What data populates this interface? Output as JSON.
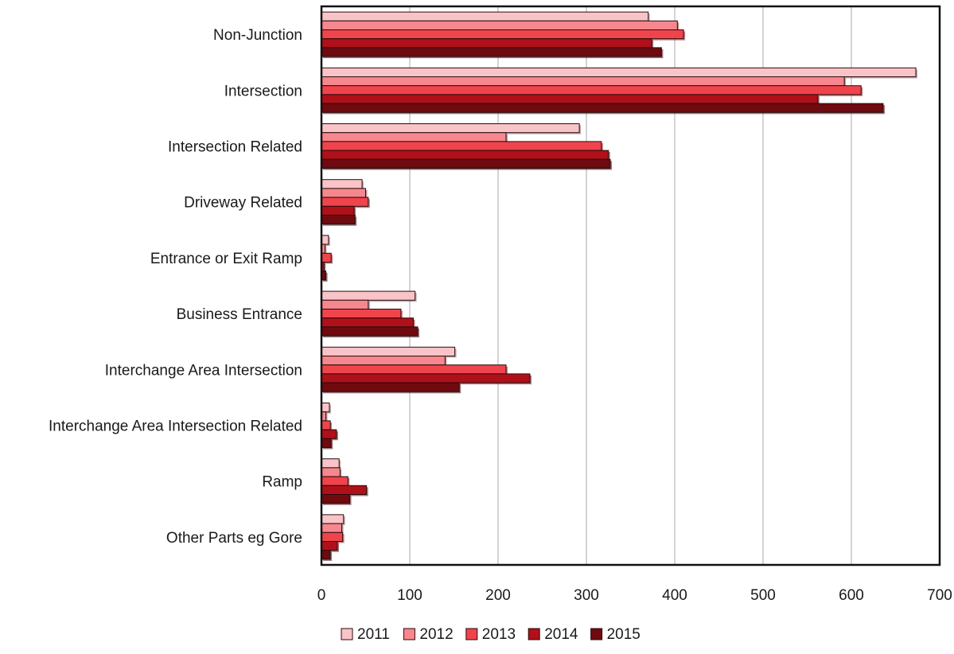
{
  "chart_data": {
    "type": "bar",
    "orientation": "horizontal",
    "title": "",
    "xlabel": "",
    "ylabel": "",
    "xlim": [
      0,
      700
    ],
    "x_ticks": [
      0,
      100,
      200,
      300,
      400,
      500,
      600,
      700
    ],
    "grid": "vertical",
    "legend_position": "bottom",
    "categories": [
      "Non-Junction",
      "Intersection",
      "Intersection Related",
      "Driveway Related",
      "Entrance or Exit Ramp",
      "Business Entrance",
      "Interchange Area Intersection",
      "Interchange Area Intersection Related",
      "Ramp",
      "Other Parts eg Gore"
    ],
    "series": [
      {
        "name": "2011",
        "color": "#f9c4c8",
        "values": [
          370,
          673,
          292,
          46,
          8,
          106,
          151,
          9,
          20,
          25
        ]
      },
      {
        "name": "2012",
        "color": "#f7878e",
        "values": [
          403,
          592,
          209,
          50,
          4,
          53,
          140,
          5,
          21,
          23
        ]
      },
      {
        "name": "2013",
        "color": "#f0444c",
        "values": [
          410,
          611,
          317,
          53,
          11,
          90,
          209,
          10,
          30,
          24
        ]
      },
      {
        "name": "2014",
        "color": "#b0101a",
        "values": [
          374,
          562,
          325,
          37,
          3,
          104,
          236,
          17,
          51,
          18
        ]
      },
      {
        "name": "2015",
        "color": "#6e0a10",
        "values": [
          385,
          636,
          327,
          38,
          5,
          109,
          156,
          11,
          32,
          10
        ]
      }
    ]
  }
}
